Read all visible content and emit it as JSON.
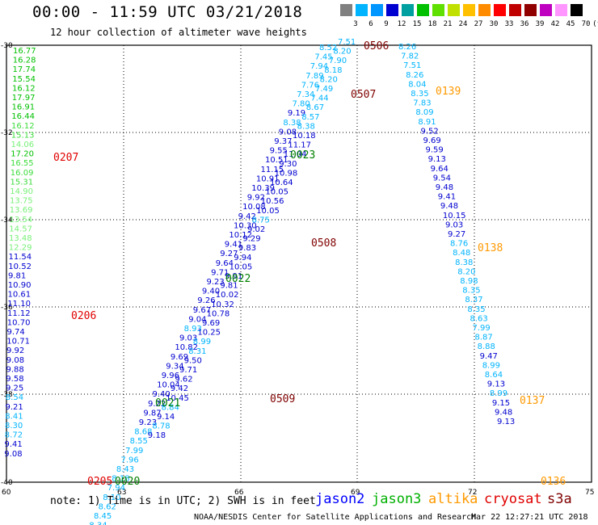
{
  "title": "00:00 - 11:59 UTC 03/21/2018",
  "subtitle": "12 hour collection of altimeter wave heights",
  "color_scale": {
    "labels": [
      "3",
      "6",
      "9",
      "12",
      "15",
      "18",
      "21",
      "24",
      "27",
      "30",
      "33",
      "36",
      "39",
      "42",
      "45",
      "70",
      "(ft)"
    ],
    "colors": [
      "#808080",
      "#00b4ff",
      "#0096ff",
      "#0000d0",
      "#00a0a0",
      "#00c000",
      "#60e000",
      "#c0e000",
      "#ffc000",
      "#ff8c00",
      "#ff0000",
      "#c00000",
      "#900000",
      "#c000c0",
      "#ff96ff",
      "#000000"
    ]
  },
  "axes": {
    "lon_ticks": [
      "60",
      "63",
      "66",
      "69",
      "72",
      "75"
    ],
    "lat_ticks": [
      "-30",
      "-32",
      "-34",
      "-36",
      "-38",
      "-40"
    ]
  },
  "level_colors": {
    "g1": "#00c000",
    "g2": "#3cdc3c",
    "g3": "#78f078",
    "b": "#0000d0",
    "c": "#00b4ff",
    "m": "#0096ff"
  },
  "tracks": [
    {
      "id": "t1",
      "x0": 16,
      "y0": 66,
      "dx": -0.25,
      "dy": 11.6,
      "items": [
        [
          "16.77",
          "g1"
        ],
        [
          "16.28",
          "g1"
        ],
        [
          "17.74",
          "g1"
        ],
        [
          "15.54",
          "g1"
        ],
        [
          "16.12",
          "g1"
        ],
        [
          "17.97",
          "g1"
        ],
        [
          "16.91",
          "g1"
        ],
        [
          "16.44",
          "g1"
        ],
        [
          "16.12",
          "g2"
        ],
        [
          "15.13",
          "g2"
        ],
        [
          "14.06",
          "g3"
        ],
        [
          "17.20",
          "g1"
        ],
        [
          "16.55",
          "g2"
        ],
        [
          "16.09",
          "g2"
        ],
        [
          "15.31",
          "g2"
        ],
        [
          "14.90",
          "g3"
        ],
        [
          "13.75",
          "g3"
        ],
        [
          "13.69",
          "g3"
        ],
        [
          "13.54",
          "g3"
        ],
        [
          "14.57",
          "g3"
        ],
        [
          "13.48",
          "g3"
        ],
        [
          "12.29",
          "g3"
        ],
        [
          "11.54",
          "b"
        ],
        [
          "10.52",
          "b"
        ],
        [
          "9.81",
          "b"
        ],
        [
          "10.90",
          "b"
        ],
        [
          "10.61",
          "b"
        ],
        [
          "11.10",
          "b"
        ],
        [
          "11.12",
          "b"
        ],
        [
          "10.70",
          "b"
        ],
        [
          "9.74",
          "b"
        ],
        [
          "10.71",
          "b"
        ],
        [
          "9.92",
          "b"
        ],
        [
          "9.08",
          "b"
        ],
        [
          "9.88",
          "b"
        ],
        [
          "9.58",
          "b"
        ],
        [
          "9.25",
          "b"
        ],
        [
          "8.54",
          "c"
        ],
        [
          "9.21",
          "b"
        ],
        [
          "8.41",
          "c"
        ],
        [
          "8.30",
          "c"
        ],
        [
          "8.72",
          "c"
        ],
        [
          "9.41",
          "b"
        ],
        [
          "9.08",
          "b"
        ]
      ]
    },
    {
      "id": "t2",
      "x0": 395,
      "y0": 62,
      "dx": -5.58,
      "dy": 11.6,
      "items": [
        [
          "8.52",
          "c"
        ],
        [
          "7.45",
          "c"
        ],
        [
          "7.94",
          "c"
        ],
        [
          "7.89",
          "c"
        ],
        [
          "7.76",
          "c"
        ],
        [
          "7.34",
          "c"
        ],
        [
          "7.80",
          "c"
        ],
        [
          "9.19",
          "b"
        ],
        [
          "8.38",
          "c"
        ],
        [
          "9.08",
          "b"
        ],
        [
          "9.37",
          "b"
        ],
        [
          "9.55",
          "b"
        ],
        [
          "10.51",
          "b"
        ],
        [
          "11.15",
          "b"
        ],
        [
          "10.91",
          "b"
        ],
        [
          "10.39",
          "b"
        ],
        [
          "9.92",
          "b"
        ],
        [
          "10.08",
          "b"
        ],
        [
          "9.42",
          "b"
        ],
        [
          "10.30",
          "b"
        ],
        [
          "10.12",
          "b"
        ],
        [
          "9.41",
          "b"
        ],
        [
          "9.27",
          "b"
        ],
        [
          "9.64",
          "b"
        ],
        [
          "9.71",
          "b"
        ],
        [
          "9.23",
          "b"
        ],
        [
          "9.40",
          "b"
        ],
        [
          "9.26",
          "b"
        ],
        [
          "9.67",
          "b"
        ],
        [
          "9.04",
          "b"
        ],
        [
          "8.93",
          "c"
        ],
        [
          "9.03",
          "b"
        ],
        [
          "10.82",
          "b"
        ],
        [
          "9.69",
          "b"
        ],
        [
          "9.34",
          "b"
        ],
        [
          "9.96",
          "b"
        ],
        [
          "10.04",
          "b"
        ],
        [
          "9.40",
          "b"
        ],
        [
          "9.22",
          "b"
        ],
        [
          "9.87",
          "b"
        ],
        [
          "9.23",
          "b"
        ],
        [
          "8.68",
          "c"
        ],
        [
          "8.55",
          "c"
        ],
        [
          "7.99",
          "c"
        ],
        [
          "7.96",
          "c"
        ],
        [
          "8.43",
          "c"
        ],
        [
          "8.18",
          "c"
        ],
        [
          "7.94",
          "c"
        ],
        [
          "8.10",
          "c"
        ],
        [
          "8.62",
          "c"
        ],
        [
          "8.45",
          "c"
        ],
        [
          "8.34",
          "c"
        ]
      ]
    },
    {
      "id": "t3",
      "x0": 418,
      "y0": 55,
      "dx": -5.6,
      "dy": 11.6,
      "items": [
        [
          "7.51",
          "c"
        ],
        [
          "8.20",
          "c"
        ],
        [
          "7.90",
          "c"
        ],
        [
          "8.18",
          "c"
        ],
        [
          "8.20",
          "c"
        ],
        [
          "7.49",
          "c"
        ],
        [
          "7.44",
          "c"
        ],
        [
          "8.67",
          "c"
        ],
        [
          "8.57",
          "c"
        ],
        [
          "8.38",
          "c"
        ],
        [
          "10.18",
          "b"
        ],
        [
          "11.17",
          "b"
        ],
        [
          "11.04",
          "b"
        ],
        [
          "9.30",
          "b"
        ],
        [
          "10.98",
          "b"
        ],
        [
          "10.64",
          "b"
        ],
        [
          "10.05",
          "b"
        ],
        [
          "10.56",
          "b"
        ],
        [
          "10.05",
          "b"
        ],
        [
          "8.75",
          "c"
        ],
        [
          "9.02",
          "b"
        ],
        [
          "9.29",
          "b"
        ],
        [
          "9.83",
          "b"
        ],
        [
          "9.94",
          "b"
        ],
        [
          "10.05",
          "b"
        ],
        [
          "9.91",
          "b"
        ],
        [
          "9.81",
          "b"
        ],
        [
          "10.02",
          "b"
        ],
        [
          "10.32",
          "b"
        ],
        [
          "10.78",
          "b"
        ],
        [
          "9.69",
          "b"
        ],
        [
          "10.25",
          "b"
        ],
        [
          "8.99",
          "c"
        ],
        [
          "8.31",
          "c"
        ],
        [
          "9.50",
          "b"
        ],
        [
          "9.71",
          "b"
        ],
        [
          "9.62",
          "b"
        ],
        [
          "9.42",
          "b"
        ],
        [
          "10.45",
          "b"
        ],
        [
          "8.84",
          "c"
        ],
        [
          "9.14",
          "b"
        ],
        [
          "8.78",
          "c"
        ],
        [
          "9.18",
          "b"
        ]
      ]
    },
    {
      "id": "t4",
      "x0": 493,
      "y0": 61,
      "dx": 3.05,
      "dy": 11.6,
      "items": [
        [
          "8.26",
          "c"
        ],
        [
          "7.82",
          "c"
        ],
        [
          "7.51",
          "c"
        ],
        [
          "8.26",
          "c"
        ],
        [
          "8.04",
          "c"
        ],
        [
          "8.35",
          "c"
        ],
        [
          "7.83",
          "c"
        ],
        [
          "8.09",
          "c"
        ],
        [
          "8.91",
          "c"
        ],
        [
          "9.52",
          "b"
        ],
        [
          "9.69",
          "b"
        ],
        [
          "9.59",
          "b"
        ],
        [
          "9.13",
          "b"
        ],
        [
          "9.64",
          "b"
        ],
        [
          "9.54",
          "b"
        ],
        [
          "9.48",
          "b"
        ],
        [
          "9.41",
          "b"
        ],
        [
          "9.48",
          "b"
        ],
        [
          "10.15",
          "b"
        ],
        [
          "9.03",
          "b"
        ],
        [
          "9.27",
          "b"
        ],
        [
          "8.76",
          "c"
        ],
        [
          "8.48",
          "c"
        ],
        [
          "8.38",
          "c"
        ],
        [
          "8.20",
          "c"
        ],
        [
          "8.98",
          "c"
        ],
        [
          "8.35",
          "c"
        ],
        [
          "8.37",
          "c"
        ],
        [
          "8.35",
          "c"
        ],
        [
          "8.63",
          "c"
        ],
        [
          "7.99",
          "c"
        ],
        [
          "8.87",
          "c"
        ],
        [
          "8.88",
          "c"
        ],
        [
          "9.47",
          "b"
        ],
        [
          "8.99",
          "c"
        ],
        [
          "8.64",
          "c"
        ],
        [
          "9.13",
          "b"
        ],
        [
          "8.99",
          "c"
        ],
        [
          "9.15",
          "b"
        ],
        [
          "9.48",
          "b"
        ],
        [
          "9.13",
          "b"
        ]
      ]
    }
  ],
  "sat_labels": [
    {
      "text": "0207",
      "color": "#e00000"
    },
    {
      "text": "0206",
      "color": "#e00000"
    },
    {
      "text": "0205",
      "color": "#e00000"
    },
    {
      "text": "0020",
      "color": "#008000"
    },
    {
      "text": "0021",
      "color": "#008000"
    },
    {
      "text": "0022",
      "color": "#008000"
    },
    {
      "text": "0023",
      "color": "#008000"
    },
    {
      "text": "0506",
      "color": "#800000"
    },
    {
      "text": "0507",
      "color": "#800000"
    },
    {
      "text": "0508",
      "color": "#800000"
    },
    {
      "text": "0509",
      "color": "#800000"
    },
    {
      "text": "0139",
      "color": "#ff9900"
    },
    {
      "text": "0138",
      "color": "#ff9900"
    },
    {
      "text": "0137",
      "color": "#ff9900"
    },
    {
      "text": "0136",
      "color": "#ff9900"
    }
  ],
  "note": "note: 1) Time is in UTC; 2) SWH is in feet",
  "satellites": [
    {
      "name": "jason2",
      "color": "#0000ff"
    },
    {
      "name": "jason3",
      "color": "#00b000"
    },
    {
      "name": "altika",
      "color": "#ff9900"
    },
    {
      "name": "cryosat",
      "color": "#e00000"
    },
    {
      "name": "s3a",
      "color": "#800000"
    }
  ],
  "footer_credit": "NOAA/NESDIS Center for Satellite Applications and Research",
  "footer_time": "Mar 22 12:27:21 UTC 2018"
}
